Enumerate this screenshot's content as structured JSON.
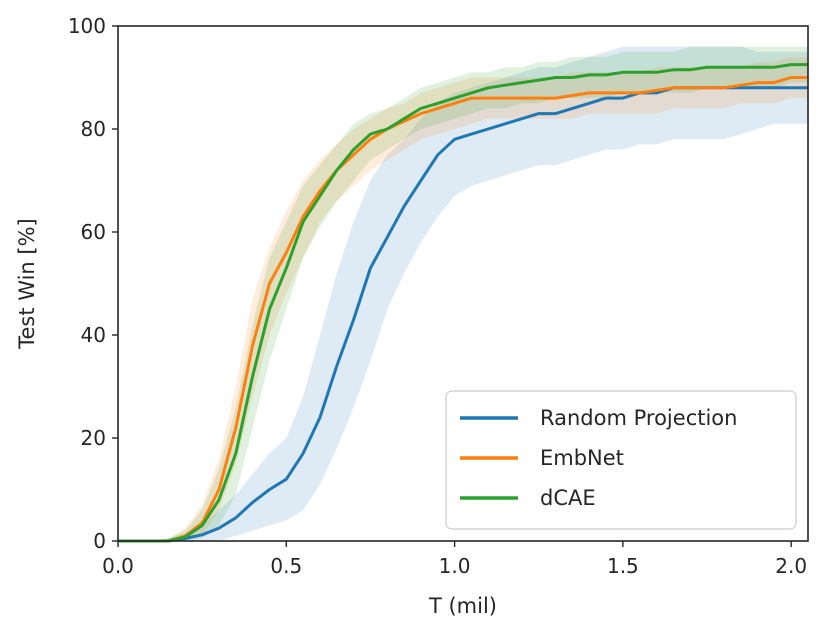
{
  "chart_data": {
    "type": "line",
    "title": "",
    "xlabel": "T (mil)",
    "ylabel": "Test Win [%]",
    "xlim": [
      0,
      2.05
    ],
    "ylim": [
      0,
      100
    ],
    "xticks": [
      "0.0",
      "0.5",
      "1.0",
      "1.5",
      "2.0"
    ],
    "yticks": [
      "0",
      "20",
      "40",
      "60",
      "80",
      "100"
    ],
    "grid": false,
    "legend_position": "lower-right",
    "x": [
      0,
      0.05,
      0.1,
      0.15,
      0.2,
      0.25,
      0.3,
      0.35,
      0.4,
      0.45,
      0.5,
      0.55,
      0.6,
      0.65,
      0.7,
      0.75,
      0.8,
      0.85,
      0.9,
      0.95,
      1.0,
      1.05,
      1.1,
      1.15,
      1.2,
      1.25,
      1.3,
      1.35,
      1.4,
      1.45,
      1.5,
      1.55,
      1.6,
      1.65,
      1.7,
      1.75,
      1.8,
      1.85,
      1.9,
      1.95,
      2.0,
      2.05
    ],
    "series": [
      {
        "name": "Random Projection",
        "color": "#1f77b4",
        "values": [
          0,
          0,
          0,
          0,
          0.5,
          1.2,
          2.5,
          4.5,
          7.5,
          10,
          12,
          17,
          24,
          34,
          43,
          53,
          59,
          65,
          70,
          75,
          78,
          79,
          80,
          81,
          82,
          83,
          83,
          84,
          85,
          86,
          86,
          87,
          87,
          88,
          88,
          88,
          88,
          88,
          88,
          88,
          88,
          88
        ],
        "lower": [
          0,
          0,
          0,
          0,
          0,
          0,
          0,
          1,
          2,
          3,
          4,
          6,
          11,
          18,
          26,
          35,
          45,
          52,
          58,
          63,
          67,
          69,
          70,
          71,
          72,
          73,
          73,
          74,
          75,
          76,
          76,
          77,
          77,
          78,
          78,
          78,
          78,
          79,
          80,
          81,
          81,
          81
        ],
        "upper": [
          0,
          0,
          0,
          0.5,
          1.5,
          3,
          6,
          9,
          13,
          17,
          20,
          28,
          40,
          52,
          62,
          70,
          75,
          78,
          82,
          85,
          87,
          88,
          89,
          90,
          91,
          92,
          92,
          93,
          94,
          95,
          96,
          96,
          96,
          96,
          96,
          96,
          96,
          96,
          95,
          95,
          95,
          95
        ]
      },
      {
        "name": "EmbNet",
        "color": "#ff7f0e",
        "values": [
          0,
          0,
          0,
          0,
          1,
          3.5,
          10,
          22,
          38,
          50,
          56,
          63,
          68,
          72,
          75,
          78,
          80,
          81.5,
          83,
          84,
          85,
          86,
          86,
          86,
          86,
          86,
          86,
          86.5,
          87,
          87,
          87,
          87,
          87.5,
          88,
          88,
          88,
          88,
          88.5,
          89,
          89,
          90,
          90
        ],
        "lower": [
          0,
          0,
          0,
          0,
          0,
          1,
          6,
          15,
          28,
          40,
          48,
          55,
          62,
          66,
          69,
          72,
          74,
          76,
          78,
          79,
          80,
          81,
          82,
          82,
          82,
          82,
          82,
          82,
          83,
          83,
          83,
          83,
          83,
          84,
          84,
          84,
          84,
          85,
          85,
          85,
          86,
          86
        ],
        "upper": [
          0,
          0,
          0,
          0.5,
          2.5,
          7,
          16,
          30,
          47,
          57,
          64,
          70,
          74,
          77,
          80,
          82,
          84,
          85,
          87,
          88,
          89,
          90,
          90,
          90,
          90,
          90,
          90,
          91,
          91,
          91,
          91,
          91,
          92,
          92,
          92,
          92,
          92,
          92,
          93,
          93,
          94,
          94
        ]
      },
      {
        "name": "dCAE",
        "color": "#2ca02c",
        "values": [
          0,
          0,
          0,
          0,
          0.8,
          3,
          8,
          17,
          32,
          45,
          53,
          62,
          67,
          72,
          76,
          79,
          80,
          82,
          84,
          85,
          86,
          87,
          88,
          88.5,
          89,
          89.5,
          90,
          90,
          90.5,
          90.5,
          91,
          91,
          91,
          91.5,
          91.5,
          92,
          92,
          92,
          92,
          92,
          92.5,
          92.5
        ],
        "lower": [
          0,
          0,
          0,
          0,
          0,
          0.5,
          3,
          9,
          22,
          35,
          45,
          55,
          61,
          66,
          70,
          74,
          76,
          78,
          80,
          81,
          82,
          83,
          84,
          84,
          85,
          85,
          86,
          86,
          86,
          86,
          87,
          87,
          87,
          87,
          87,
          88,
          88,
          88,
          88,
          88,
          89,
          89
        ],
        "upper": [
          0,
          0,
          0,
          0.5,
          2,
          6,
          14,
          26,
          42,
          55,
          62,
          69,
          73,
          77,
          81,
          83,
          84,
          86,
          88,
          89,
          90,
          91,
          91,
          92,
          92,
          93,
          93,
          94,
          94,
          94,
          95,
          95,
          95,
          95,
          96,
          96,
          96,
          96,
          96,
          96,
          96,
          96
        ]
      }
    ]
  }
}
